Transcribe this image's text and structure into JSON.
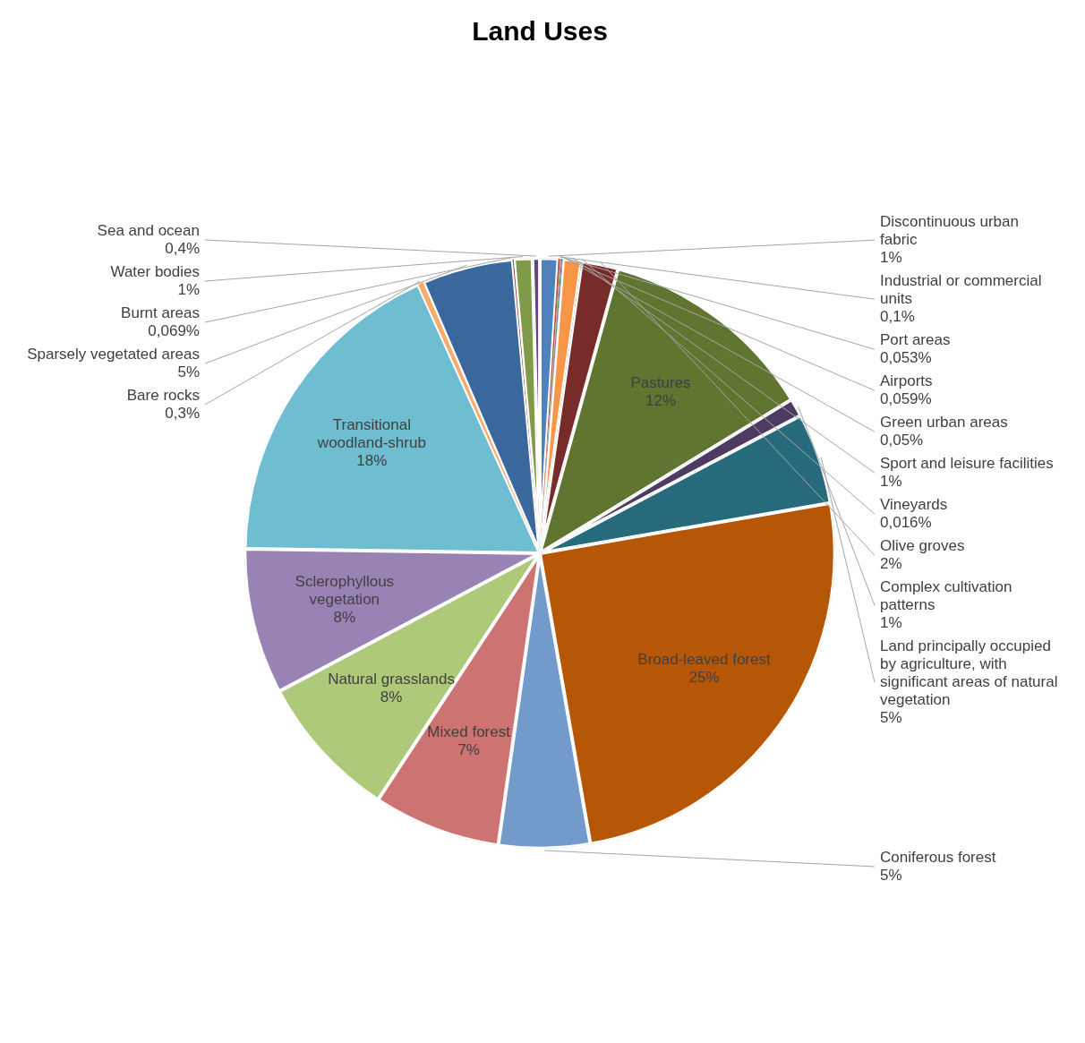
{
  "chart_data": {
    "type": "pie",
    "title": "Land Uses",
    "categories": [
      "Discontinuous urban fabric",
      "Industrial or commercial units",
      "Port areas",
      "Airports",
      "Green urban areas",
      "Sport and leisure facilities",
      "Vineyards",
      "Olive groves",
      "Pastures",
      "Complex cultivation patterns",
      "Land principally occupied by agriculture, with significant areas of natural vegetation",
      "Broad-leaved forest",
      "Coniferous forest",
      "Mixed forest",
      "Natural grasslands",
      "Sclerophyllous vegetation",
      "Transitional woodland-shrub",
      "Bare rocks",
      "Sparsely vegetated areas",
      "Burnt areas",
      "Water bodies",
      "Sea and ocean"
    ],
    "values": [
      1,
      0.1,
      0.053,
      0.059,
      0.05,
      1,
      0.016,
      2,
      12,
      1,
      5,
      25,
      5,
      7,
      8,
      8,
      18,
      0.3,
      5,
      0.069,
      1,
      0.4
    ],
    "value_labels": [
      "1%",
      "0,1%",
      "0,053%",
      "0,059%",
      "0,05%",
      "1%",
      "0,016%",
      "2%",
      "12%",
      "1%",
      "5%",
      "25%",
      "5%",
      "7%",
      "8%",
      "8%",
      "18%",
      "0,3%",
      "5%",
      "0,069%",
      "1%",
      "0,4%"
    ],
    "colors": [
      "#4f81bd",
      "#c0504d",
      "#9bbb59",
      "#8064a2",
      "#4bacc6",
      "#f79646",
      "#2c4d75",
      "#772c2a",
      "#5f7530",
      "#4d3b62",
      "#276a7c",
      "#b65708",
      "#729aca",
      "#cd7371",
      "#afc97a",
      "#9983b5",
      "#6fbdd1",
      "#f9ab6b",
      "#3a679c",
      "#9c4a48",
      "#7f9a48",
      "#5d4a78"
    ],
    "legend": false
  }
}
